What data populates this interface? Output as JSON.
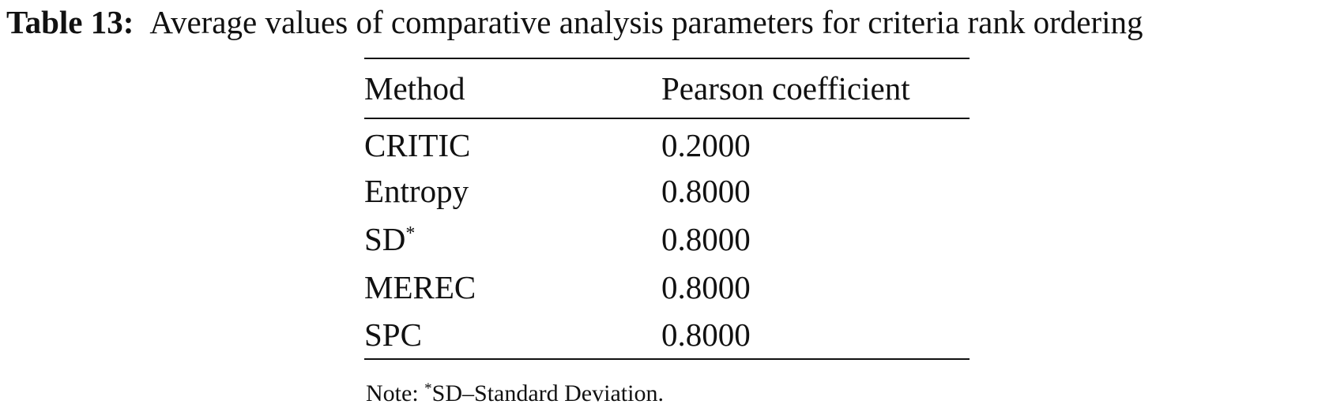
{
  "caption": {
    "label": "Table 13:",
    "text": "Average values of comparative analysis parameters for criteria rank ordering"
  },
  "table": {
    "headers": [
      "Method",
      "Pearson coefficient"
    ],
    "rows": [
      {
        "method": "CRITIC",
        "mark": "",
        "value": "0.2000"
      },
      {
        "method": "Entropy",
        "mark": "",
        "value": "0.8000"
      },
      {
        "method": "SD",
        "mark": "*",
        "value": "0.8000"
      },
      {
        "method": "MEREC",
        "mark": "",
        "value": "0.8000"
      },
      {
        "method": "SPC",
        "mark": "",
        "value": "0.8000"
      }
    ]
  },
  "note": {
    "prefix": "Note: ",
    "mark": "*",
    "text": "SD–Standard Deviation."
  }
}
